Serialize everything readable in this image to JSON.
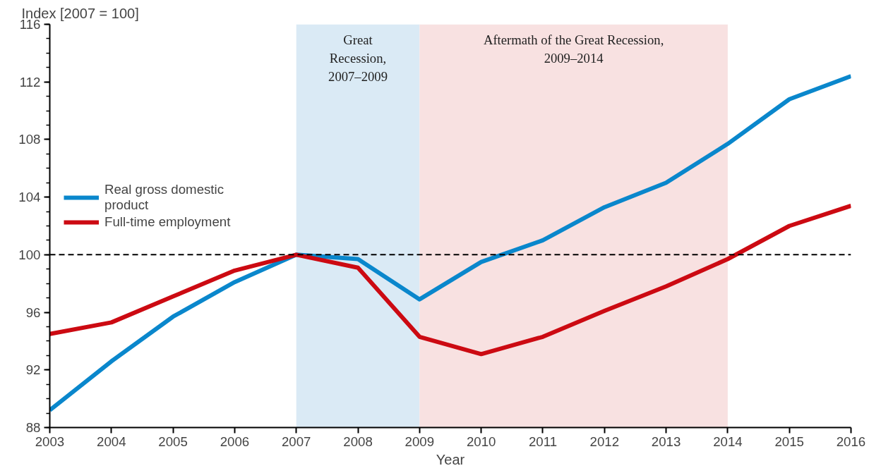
{
  "chart_data": {
    "type": "line",
    "x": [
      2003,
      2004,
      2005,
      2006,
      2007,
      2008,
      2009,
      2010,
      2011,
      2012,
      2013,
      2014,
      2015,
      2016
    ],
    "series": [
      {
        "name": "Real gross domestic product",
        "color": "#0a87cc",
        "values": [
          89.2,
          92.6,
          95.7,
          98.1,
          100.0,
          99.7,
          96.9,
          99.5,
          101.0,
          103.3,
          105.0,
          107.7,
          110.8,
          112.4
        ]
      },
      {
        "name": "Full-time employment",
        "color": "#cc0a12",
        "values": [
          94.5,
          95.3,
          97.1,
          98.9,
          100.0,
          99.1,
          94.3,
          93.1,
          94.3,
          96.1,
          97.8,
          99.7,
          102.0,
          103.4
        ]
      }
    ],
    "xlabel": "Year",
    "ylabel": "Index  [2007 = 100]",
    "xlim": [
      2003,
      2016
    ],
    "xticks": [
      2003,
      2004,
      2005,
      2006,
      2007,
      2008,
      2009,
      2010,
      2011,
      2012,
      2013,
      2014,
      2015,
      2016
    ],
    "ylim": [
      88,
      116
    ],
    "yticks": [
      88,
      92,
      96,
      100,
      104,
      108,
      112,
      116
    ],
    "ref_lines": [
      {
        "axis": "y",
        "value": 100,
        "color": "#000000",
        "line_style": "dashed"
      }
    ],
    "bands": [
      {
        "axis": "x",
        "from": 2007,
        "to": 2009,
        "label": "Great Recession, 2007–2009",
        "color": "#daeaf5"
      },
      {
        "axis": "x",
        "from": 2009,
        "to": 2014,
        "label": "Aftermath of the Great Recession, 2009–2014",
        "color": "#f8e1e1"
      }
    ],
    "legend": "top left",
    "grid": false,
    "marker": "none",
    "line_style": "solid"
  }
}
